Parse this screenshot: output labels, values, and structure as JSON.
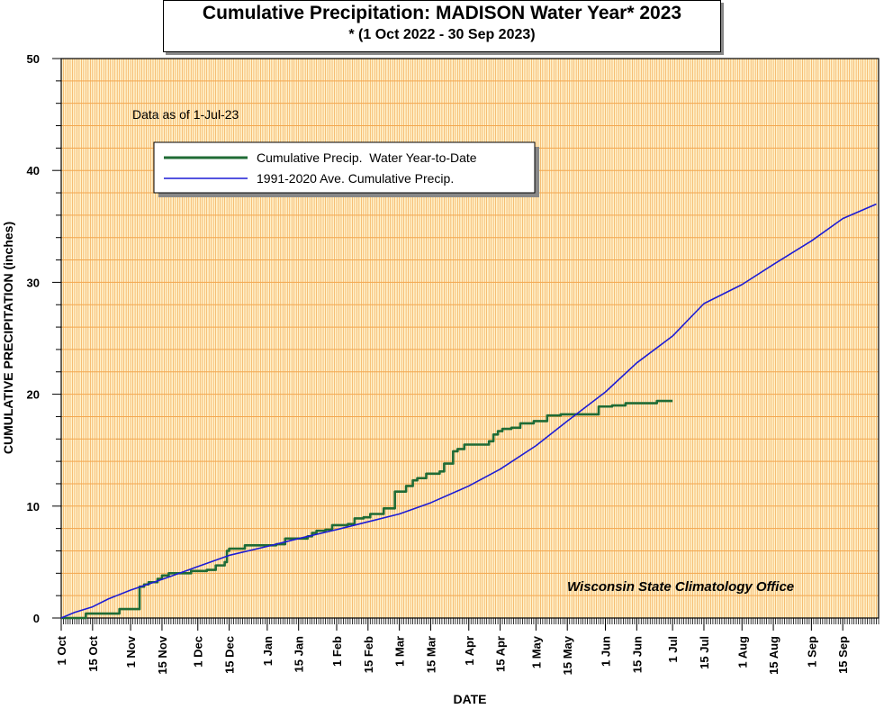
{
  "chart_data": {
    "type": "line",
    "title": "Cumulative Precipitation: MADISON Water Year* 2023",
    "subtitle": "* (1 Oct 2022 - 30 Sep 2023)",
    "xlabel": "DATE",
    "ylabel": "CUMULATIVE PRECIPITATION (inches)",
    "ylim": [
      0,
      50
    ],
    "yticks": [
      "0",
      "10",
      "20",
      "30",
      "40",
      "50"
    ],
    "xlim": [
      "2022-10-01",
      "2023-09-30"
    ],
    "xticks": [
      {
        "label": "1 Oct",
        "date": "2022-10-01"
      },
      {
        "label": "15 Oct",
        "date": "2022-10-15"
      },
      {
        "label": "1 Nov",
        "date": "2022-11-01"
      },
      {
        "label": "15 Nov",
        "date": "2022-11-15"
      },
      {
        "label": "1 Dec",
        "date": "2022-12-01"
      },
      {
        "label": "15 Dec",
        "date": "2022-12-15"
      },
      {
        "label": "1 Jan",
        "date": "2023-01-01"
      },
      {
        "label": "15 Jan",
        "date": "2023-01-15"
      },
      {
        "label": "1 Feb",
        "date": "2023-02-01"
      },
      {
        "label": "15 Feb",
        "date": "2023-02-15"
      },
      {
        "label": "1 Mar",
        "date": "2023-03-01"
      },
      {
        "label": "15 Mar",
        "date": "2023-03-15"
      },
      {
        "label": "1 Apr",
        "date": "2023-04-01"
      },
      {
        "label": "15 Apr",
        "date": "2023-04-15"
      },
      {
        "label": "1 May",
        "date": "2023-05-01"
      },
      {
        "label": "15 May",
        "date": "2023-05-15"
      },
      {
        "label": "1 Jun",
        "date": "2023-06-01"
      },
      {
        "label": "15 Jun",
        "date": "2023-06-15"
      },
      {
        "label": "1 Jul",
        "date": "2023-07-01"
      },
      {
        "label": "15 Jul",
        "date": "2023-07-15"
      },
      {
        "label": "1 Aug",
        "date": "2023-08-01"
      },
      {
        "label": "15 Aug",
        "date": "2023-08-15"
      },
      {
        "label": "1 Sep",
        "date": "2023-09-01"
      },
      {
        "label": "15 Sep",
        "date": "2023-09-15"
      }
    ],
    "grid": true,
    "legend_position": "top-left",
    "annotation": "Data as of 1-Jul-23",
    "credit": "Wisconsin State Climatology Office",
    "series": [
      {
        "name": "Cumulative Precip.  Water Year-to-Date",
        "color": "#1f6b35",
        "style": "step",
        "points": [
          [
            "2022-10-01",
            0
          ],
          [
            "2022-10-12",
            0.4
          ],
          [
            "2022-10-27",
            0.8
          ],
          [
            "2022-11-05",
            2.8
          ],
          [
            "2022-11-07",
            3.0
          ],
          [
            "2022-11-09",
            3.2
          ],
          [
            "2022-11-13",
            3.5
          ],
          [
            "2022-11-15",
            3.8
          ],
          [
            "2022-11-18",
            4.0
          ],
          [
            "2022-11-28",
            4.2
          ],
          [
            "2022-12-05",
            4.3
          ],
          [
            "2022-12-09",
            4.7
          ],
          [
            "2022-12-13",
            5.0
          ],
          [
            "2022-12-14",
            6.0
          ],
          [
            "2022-12-15",
            6.2
          ],
          [
            "2022-12-22",
            6.5
          ],
          [
            "2023-01-05",
            6.6
          ],
          [
            "2023-01-09",
            7.1
          ],
          [
            "2023-01-19",
            7.3
          ],
          [
            "2023-01-21",
            7.6
          ],
          [
            "2023-01-23",
            7.8
          ],
          [
            "2023-01-27",
            7.9
          ],
          [
            "2023-01-30",
            8.3
          ],
          [
            "2023-02-06",
            8.4
          ],
          [
            "2023-02-09",
            8.9
          ],
          [
            "2023-02-13",
            9.0
          ],
          [
            "2023-02-16",
            9.3
          ],
          [
            "2023-02-22",
            9.8
          ],
          [
            "2023-02-27",
            11.3
          ],
          [
            "2023-03-04",
            11.8
          ],
          [
            "2023-03-07",
            12.3
          ],
          [
            "2023-03-09",
            12.5
          ],
          [
            "2023-03-13",
            12.9
          ],
          [
            "2023-03-19",
            13.1
          ],
          [
            "2023-03-21",
            13.8
          ],
          [
            "2023-03-25",
            14.9
          ],
          [
            "2023-03-27",
            15.1
          ],
          [
            "2023-03-30",
            15.5
          ],
          [
            "2023-04-10",
            15.8
          ],
          [
            "2023-04-12",
            16.4
          ],
          [
            "2023-04-14",
            16.7
          ],
          [
            "2023-04-16",
            16.9
          ],
          [
            "2023-04-20",
            17.0
          ],
          [
            "2023-04-24",
            17.4
          ],
          [
            "2023-04-30",
            17.6
          ],
          [
            "2023-05-06",
            18.1
          ],
          [
            "2023-05-12",
            18.2
          ],
          [
            "2023-05-29",
            18.9
          ],
          [
            "2023-06-04",
            19.0
          ],
          [
            "2023-06-10",
            19.2
          ],
          [
            "2023-06-24",
            19.4
          ],
          [
            "2023-07-01",
            19.4
          ]
        ]
      },
      {
        "name": "1991-2020 Ave. Cumulative Precip.",
        "color": "#1c1cd6",
        "style": "line",
        "points": [
          [
            "2022-10-01",
            0
          ],
          [
            "2022-10-07",
            0.5
          ],
          [
            "2022-10-15",
            1.0
          ],
          [
            "2022-10-22",
            1.7
          ],
          [
            "2022-11-01",
            2.5
          ],
          [
            "2022-11-10",
            3.1
          ],
          [
            "2022-11-20",
            3.8
          ],
          [
            "2022-12-01",
            4.6
          ],
          [
            "2022-12-15",
            5.6
          ],
          [
            "2023-01-01",
            6.4
          ],
          [
            "2023-01-15",
            7.1
          ],
          [
            "2023-02-01",
            7.9
          ],
          [
            "2023-02-15",
            8.6
          ],
          [
            "2023-03-01",
            9.3
          ],
          [
            "2023-03-15",
            10.3
          ],
          [
            "2023-04-01",
            11.8
          ],
          [
            "2023-04-15",
            13.3
          ],
          [
            "2023-05-01",
            15.4
          ],
          [
            "2023-05-15",
            17.6
          ],
          [
            "2023-06-01",
            20.2
          ],
          [
            "2023-06-15",
            22.8
          ],
          [
            "2023-07-01",
            25.2
          ],
          [
            "2023-07-15",
            28.1
          ],
          [
            "2023-08-01",
            29.8
          ],
          [
            "2023-08-15",
            31.6
          ],
          [
            "2023-09-01",
            33.7
          ],
          [
            "2023-09-15",
            35.7
          ],
          [
            "2023-09-30",
            37.0
          ]
        ]
      }
    ]
  }
}
